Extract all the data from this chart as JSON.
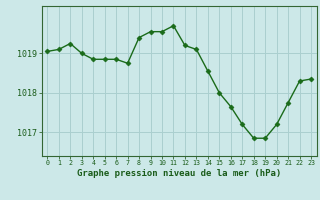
{
  "x": [
    0,
    1,
    2,
    3,
    4,
    5,
    6,
    7,
    8,
    9,
    10,
    11,
    12,
    13,
    14,
    15,
    16,
    17,
    18,
    19,
    20,
    21,
    22,
    23
  ],
  "y": [
    1019.05,
    1019.1,
    1019.25,
    1019.0,
    1018.85,
    1018.85,
    1018.85,
    1018.75,
    1019.4,
    1019.55,
    1019.55,
    1019.7,
    1019.2,
    1019.1,
    1018.55,
    1018.0,
    1017.65,
    1017.2,
    1016.85,
    1016.85,
    1017.2,
    1017.75,
    1018.3,
    1018.35
  ],
  "line_color": "#1a6b1a",
  "marker": "D",
  "marker_size": 2.5,
  "bg_color": "#cce8e8",
  "grid_color": "#aacfcf",
  "axis_color": "#336633",
  "tick_label_color": "#1a5c1a",
  "xlabel": "Graphe pression niveau de la mer (hPa)",
  "xlabel_color": "#1a5c1a",
  "xlabel_fontsize": 6.5,
  "ytick_labels": [
    "1017",
    "1018",
    "1019"
  ],
  "yticks": [
    1017,
    1018,
    1019
  ],
  "ylim": [
    1016.4,
    1020.2
  ],
  "xlim": [
    -0.5,
    23.5
  ],
  "xticks": [
    0,
    1,
    2,
    3,
    4,
    5,
    6,
    7,
    8,
    9,
    10,
    11,
    12,
    13,
    14,
    15,
    16,
    17,
    18,
    19,
    20,
    21,
    22,
    23
  ]
}
